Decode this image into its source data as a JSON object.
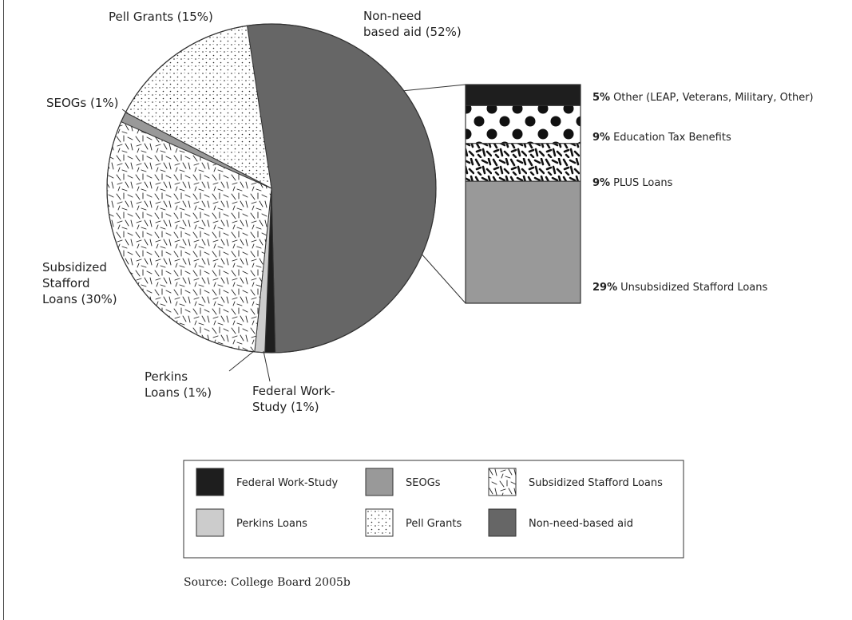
{
  "chart_data": [
    {
      "type": "pie",
      "slices": [
        {
          "key": "nonneed",
          "name": "Non-need-based aid",
          "label": [
            "Non-need",
            "based aid (52%)"
          ],
          "value": 52,
          "color": "#666666"
        },
        {
          "key": "fws",
          "name": "Federal Work-Study",
          "label": [
            "Federal Work-",
            "Study (1%)"
          ],
          "value": 1,
          "color": "#1e1e1e"
        },
        {
          "key": "perkins",
          "name": "Perkins Loans",
          "label": [
            "Perkins",
            "Loans (1%)"
          ],
          "value": 1,
          "color": "#cccccc"
        },
        {
          "key": "stafford",
          "name": "Subsidized Stafford Loans",
          "label": [
            "Subsidized",
            "Stafford",
            "Loans (30%)"
          ],
          "value": 30,
          "color": "pattern-dashes"
        },
        {
          "key": "seog",
          "name": "SEOGs",
          "label": [
            "SEOGs (1%)"
          ],
          "value": 1,
          "color": "#999999"
        },
        {
          "key": "pell",
          "name": "Pell Grants",
          "label": [
            "Pell Grants (15%)"
          ],
          "value": 15,
          "color": "pattern-dots"
        }
      ]
    },
    {
      "type": "bar",
      "stacked": true,
      "breakdown_of": "Non-need based aid (52%)",
      "segments": [
        {
          "key": "other",
          "pct": "5%",
          "value": 5,
          "label": "Other (LEAP, Veterans, Military, Other)",
          "color": "#1e1e1e"
        },
        {
          "key": "tax",
          "pct": "9%",
          "value": 9,
          "label": "Education Tax Benefits",
          "color": "pattern-large-dots"
        },
        {
          "key": "plus",
          "pct": "9%",
          "value": 9,
          "label": "PLUS Loans",
          "color": "pattern-bold-dashes"
        },
        {
          "key": "unsub",
          "pct": "29%",
          "value": 29,
          "label": "Unsubsidized Stafford Loans",
          "color": "#999999"
        }
      ]
    }
  ],
  "legend": {
    "items": [
      {
        "key": "fws",
        "label": "Federal Work-Study",
        "color": "#1e1e1e"
      },
      {
        "key": "seog",
        "label": "SEOGs",
        "color": "#999999"
      },
      {
        "key": "stafford",
        "label": "Subsidized Stafford Loans",
        "color": "pattern-dashes"
      },
      {
        "key": "perkins",
        "label": "Perkins Loans",
        "color": "#cccccc"
      },
      {
        "key": "pell",
        "label": "Pell Grants",
        "color": "pattern-dots"
      },
      {
        "key": "nonneed",
        "label": "Non-need-based aid",
        "color": "#666666"
      }
    ]
  },
  "source": "Source: College Board 2005b"
}
